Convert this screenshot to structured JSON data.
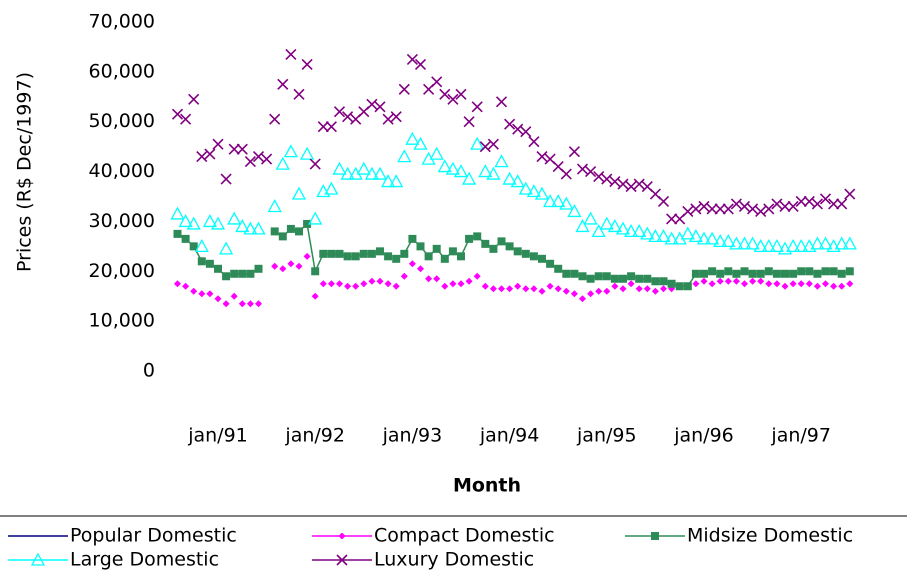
{
  "chart_data": {
    "type": "line",
    "y_label": "Prices (R$ Dec/1997)",
    "x_label": "Month",
    "categories": [
      null,
      null,
      null,
      null,
      null,
      "jan/91",
      null,
      null,
      null,
      null,
      null,
      null,
      null,
      null,
      null,
      null,
      null,
      "jan/92",
      null,
      null,
      null,
      null,
      null,
      null,
      null,
      null,
      null,
      null,
      null,
      "jan/93",
      null,
      null,
      null,
      null,
      null,
      null,
      null,
      null,
      null,
      null,
      null,
      "jan/94",
      null,
      null,
      null,
      null,
      null,
      null,
      null,
      null,
      null,
      null,
      null,
      "jan/95",
      null,
      null,
      null,
      null,
      null,
      null,
      null,
      null,
      null,
      null,
      null,
      "jan/96",
      null,
      null,
      null,
      null,
      null,
      null,
      null,
      null,
      null,
      null,
      null,
      "jan/97",
      null,
      null,
      null,
      null,
      null,
      null
    ],
    "ylim": [
      0,
      70000
    ],
    "yticks": [
      0,
      {
        "value": 10000,
        "label": "10,000"
      },
      {
        "value": 20000,
        "label": "20,000"
      },
      {
        "value": 30000,
        "label": "30,000"
      },
      {
        "value": 40000,
        "label": "40,000"
      },
      {
        "value": 50000,
        "label": "50,000"
      },
      {
        "value": 60000,
        "label": "60,000"
      },
      {
        "value": 70000,
        "label": "70,000"
      }
    ],
    "series": [
      {
        "name": "Popular Domestic",
        "color": "#000080",
        "marker": "none",
        "values": [
          null,
          null,
          null,
          null,
          null,
          null,
          null,
          null,
          null,
          null,
          null,
          null,
          null,
          null,
          null,
          null,
          null,
          null,
          null,
          null,
          null,
          null,
          null,
          null,
          null,
          null,
          null,
          null,
          null,
          null,
          null,
          null,
          null,
          null,
          null,
          null,
          null,
          null,
          null,
          null,
          null,
          null,
          null,
          null,
          null,
          null,
          null,
          null,
          null,
          null,
          null,
          null,
          null,
          null,
          null,
          null,
          null,
          null,
          null,
          null,
          null,
          null,
          null,
          null,
          null,
          null,
          null,
          null,
          null,
          null,
          null,
          null,
          null,
          null,
          null,
          null,
          null,
          null,
          null,
          null,
          null,
          null,
          null,
          null
        ]
      },
      {
        "name": "Compact Domestic",
        "color": "#ff00ff",
        "marker": "diamond",
        "values": [
          17500,
          17000,
          16000,
          15500,
          15500,
          14500,
          13500,
          15000,
          13500,
          13500,
          13500,
          null,
          21000,
          20500,
          21500,
          21000,
          23000,
          15000,
          17500,
          17500,
          17500,
          17000,
          17000,
          17500,
          18000,
          18000,
          17500,
          17000,
          19000,
          21500,
          20500,
          18500,
          18500,
          17000,
          17500,
          17500,
          18000,
          19000,
          17000,
          16500,
          16500,
          16500,
          17000,
          16500,
          16500,
          16000,
          17000,
          16500,
          16000,
          15500,
          14500,
          15500,
          16000,
          16000,
          17000,
          16500,
          17500,
          16500,
          16500,
          16000,
          16500,
          16500,
          17000,
          17000,
          17500,
          18000,
          17500,
          18000,
          18000,
          18000,
          17500,
          18000,
          18000,
          17500,
          17500,
          17000,
          17500,
          17500,
          17500,
          17000,
          17500,
          17000,
          17000,
          17500
        ]
      },
      {
        "name": "Midsize Domestic",
        "color": "#2e8b57",
        "marker": "square",
        "values": [
          27500,
          26500,
          25000,
          22000,
          21500,
          20500,
          19000,
          19500,
          19500,
          19500,
          20500,
          null,
          28000,
          27000,
          28500,
          28000,
          29500,
          20000,
          23500,
          23500,
          23500,
          23000,
          23000,
          23500,
          23500,
          24000,
          23000,
          22500,
          23500,
          26500,
          25000,
          23000,
          24500,
          22500,
          24000,
          23000,
          26500,
          27000,
          25500,
          24500,
          26000,
          25000,
          24000,
          23500,
          23000,
          22500,
          21500,
          20500,
          19500,
          19500,
          19000,
          18500,
          19000,
          19000,
          18500,
          18500,
          19000,
          18500,
          18500,
          18000,
          18000,
          17500,
          17000,
          17000,
          19500,
          19500,
          20000,
          19500,
          20000,
          19500,
          20000,
          19500,
          19500,
          20000,
          19500,
          19500,
          19500,
          20000,
          20000,
          19500,
          20000,
          20000,
          19500,
          20000
        ]
      },
      {
        "name": "Large Domestic",
        "color": "#00ffff",
        "marker": "triangle",
        "values": [
          31500,
          30000,
          29500,
          25000,
          30000,
          29500,
          24500,
          30500,
          29000,
          28500,
          28500,
          null,
          33000,
          41500,
          44000,
          35500,
          43500,
          30500,
          36000,
          36500,
          40500,
          39500,
          39500,
          40500,
          39500,
          39500,
          38000,
          38000,
          43000,
          46500,
          45500,
          42500,
          43500,
          41000,
          40500,
          40000,
          38500,
          45500,
          40000,
          39500,
          42000,
          38500,
          38000,
          36500,
          36000,
          35500,
          34000,
          34000,
          33500,
          32000,
          29000,
          30500,
          28000,
          29500,
          29000,
          28500,
          28000,
          28000,
          27500,
          27000,
          27000,
          26500,
          26500,
          27500,
          27000,
          26500,
          26500,
          26000,
          26000,
          25500,
          25500,
          25500,
          25000,
          25000,
          25000,
          24500,
          25000,
          25000,
          25000,
          25500,
          25500,
          25000,
          25500,
          25500
        ]
      },
      {
        "name": "Luxury Domestic",
        "color": "#800080",
        "marker": "x",
        "values": [
          51500,
          50500,
          54500,
          43000,
          43500,
          45500,
          38500,
          44500,
          44500,
          42000,
          43000,
          42500,
          50500,
          57500,
          63500,
          55500,
          61500,
          41500,
          49000,
          49000,
          52000,
          51000,
          50500,
          52000,
          53500,
          53000,
          50500,
          51000,
          56500,
          62500,
          61500,
          56500,
          58000,
          55500,
          54500,
          55500,
          50000,
          53000,
          45000,
          45500,
          54000,
          49500,
          48500,
          48000,
          46000,
          43000,
          42500,
          41000,
          39500,
          44000,
          40500,
          40000,
          39000,
          38500,
          38000,
          37500,
          37000,
          37500,
          37000,
          35500,
          34000,
          30500,
          30500,
          32000,
          32500,
          33000,
          32500,
          32500,
          32500,
          33500,
          33000,
          32500,
          32000,
          32500,
          33500,
          33000,
          33000,
          34000,
          34000,
          33500,
          34500,
          33500,
          33500,
          35500
        ]
      }
    ]
  }
}
